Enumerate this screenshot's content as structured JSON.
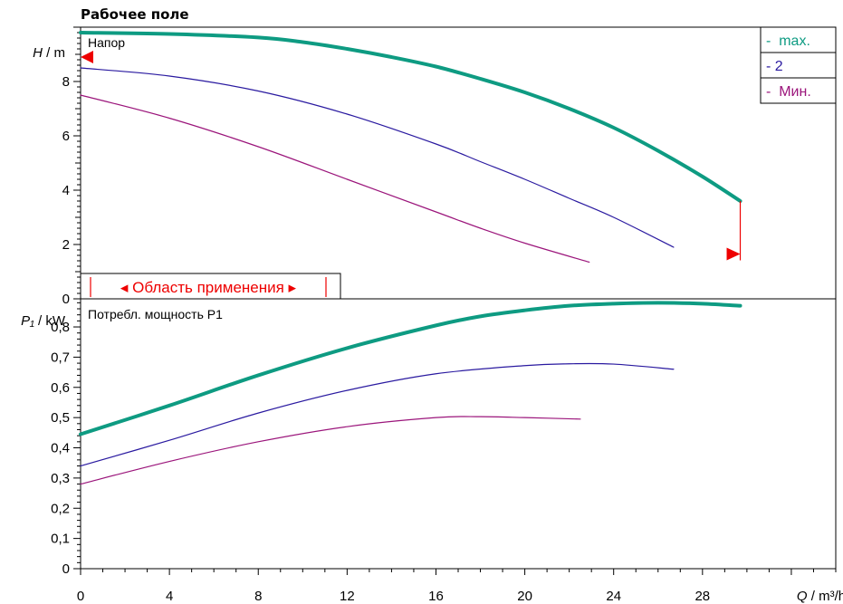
{
  "colors": {
    "max": "#0e9b82",
    "mid": "#2a1aa0",
    "min": "#9b157b",
    "marker": "#ee0000",
    "grid": "#000000"
  },
  "chart_data": [
    {
      "type": "line",
      "title": "Рабочее поле",
      "panel_label": "Напор",
      "ylabel": {
        "symbol": "H",
        "unit": " / m"
      },
      "xlabel": {
        "symbol": "Q",
        "unit": " / m³/h"
      },
      "xlim": [
        0,
        34
      ],
      "ylim": [
        0,
        10
      ],
      "x_ticks": [
        0,
        4,
        8,
        12,
        16,
        20,
        24,
        28
      ],
      "y_ticks": [
        0,
        2,
        4,
        6,
        8
      ],
      "legend": {
        "placement": "top-right",
        "entries": [
          "-  max.",
          "- 2",
          "-  Мин."
        ]
      },
      "series": [
        {
          "key": "max",
          "x": [
            0,
            4,
            8,
            10,
            12,
            14,
            16,
            18,
            20,
            22,
            24,
            26,
            28,
            29.7
          ],
          "y": [
            9.8,
            9.75,
            9.62,
            9.45,
            9.2,
            8.9,
            8.55,
            8.1,
            7.6,
            7.0,
            6.3,
            5.45,
            4.5,
            3.6
          ]
        },
        {
          "key": "mid",
          "x": [
            0,
            4,
            8,
            12,
            16,
            18,
            20,
            22,
            24,
            26.7
          ],
          "y": [
            8.5,
            8.2,
            7.65,
            6.8,
            5.7,
            5.05,
            4.4,
            3.7,
            3.0,
            1.9
          ]
        },
        {
          "key": "min",
          "x": [
            0,
            4,
            8,
            12,
            16,
            18,
            20,
            22.9
          ],
          "y": [
            7.5,
            6.65,
            5.6,
            4.4,
            3.2,
            2.6,
            2.05,
            1.35
          ]
        }
      ],
      "annotations": {
        "range_text": "◂ Область применения ▸",
        "marker_left_y": 8.9,
        "marker_right": {
          "x": 29.7,
          "y": 1.65
        }
      }
    },
    {
      "type": "line",
      "panel_label": "Потребл. мощность P1",
      "ylabel": {
        "symbol": "P₁",
        "unit": " / kW"
      },
      "xlim": [
        0,
        34
      ],
      "ylim": [
        0,
        0.9
      ],
      "y_ticks": [
        0,
        0.1,
        0.2,
        0.3,
        0.4,
        0.5,
        0.6,
        0.7,
        0.8
      ],
      "y_tick_labels": [
        "0",
        "0,1",
        "0,2",
        "0,3",
        "0,4",
        "0,5",
        "0,6",
        "0,7",
        "0,8"
      ],
      "series": [
        {
          "key": "max",
          "x": [
            0,
            4,
            8,
            12,
            16,
            18,
            20,
            22,
            24,
            26,
            28,
            29.7
          ],
          "y": [
            0.445,
            0.54,
            0.64,
            0.73,
            0.805,
            0.835,
            0.855,
            0.87,
            0.877,
            0.88,
            0.877,
            0.87
          ]
        },
        {
          "key": "mid",
          "x": [
            0,
            4,
            8,
            12,
            16,
            20,
            22,
            24,
            26.7
          ],
          "y": [
            0.34,
            0.425,
            0.515,
            0.59,
            0.645,
            0.672,
            0.678,
            0.677,
            0.66
          ]
        },
        {
          "key": "min",
          "x": [
            0,
            4,
            8,
            12,
            16,
            18,
            20,
            22.5
          ],
          "y": [
            0.28,
            0.355,
            0.42,
            0.47,
            0.5,
            0.503,
            0.5,
            0.495
          ]
        }
      ]
    }
  ]
}
